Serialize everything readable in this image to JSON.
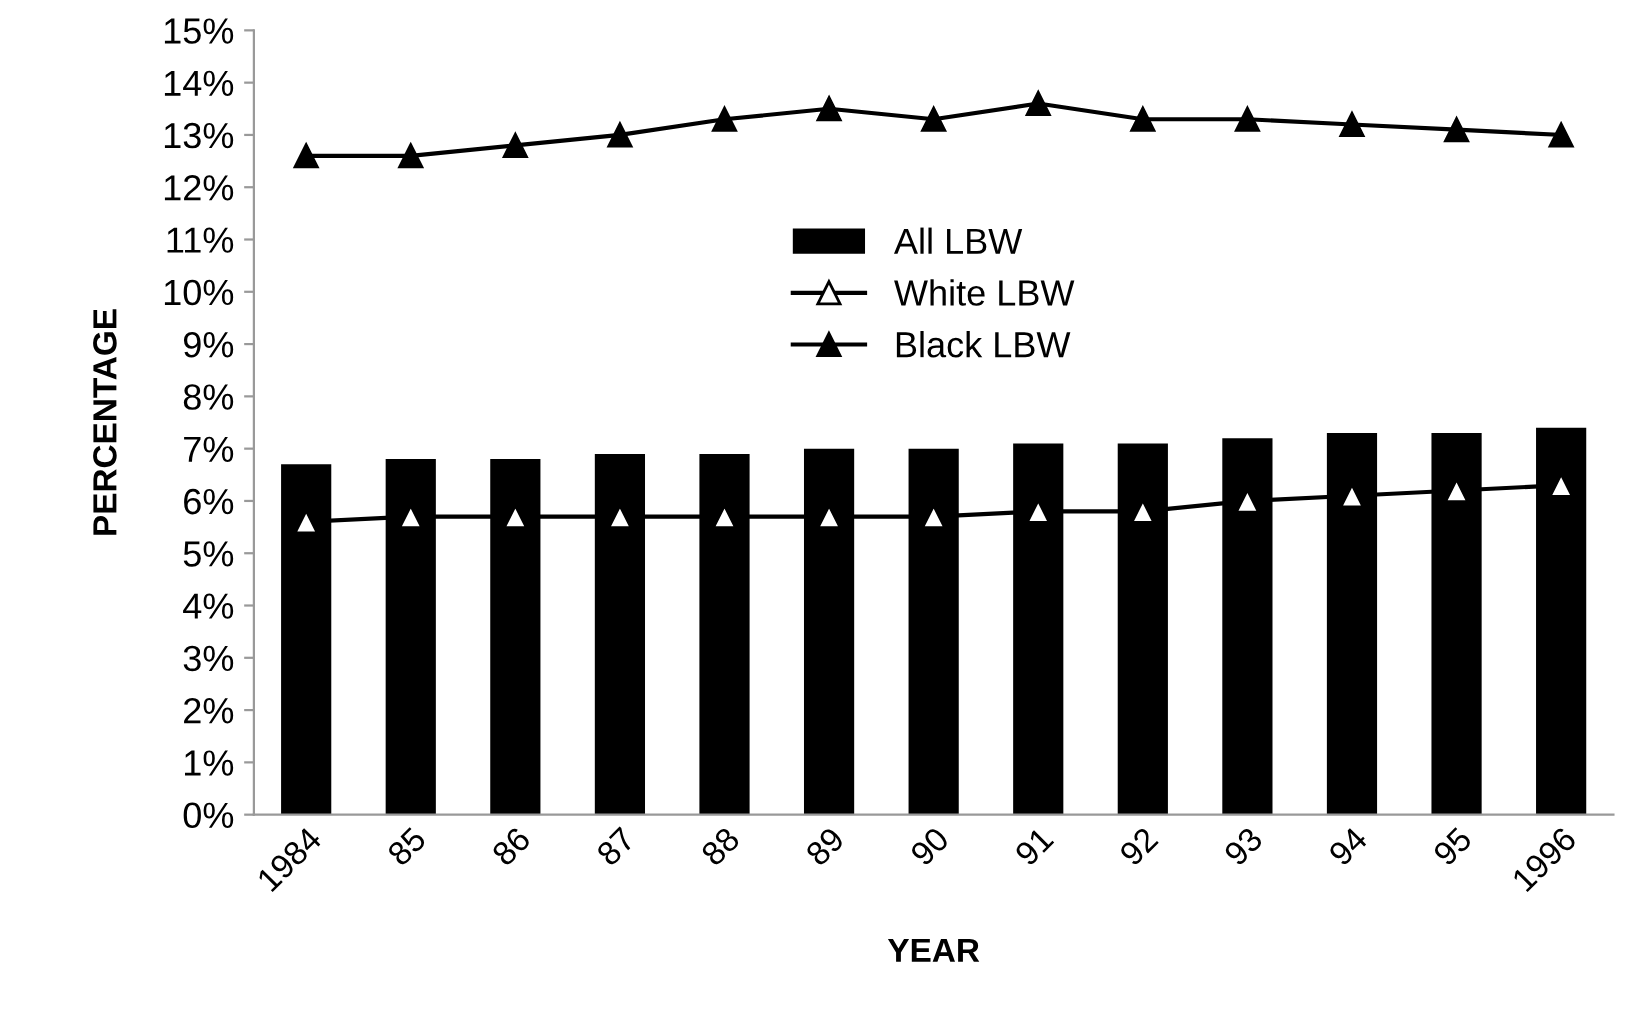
{
  "chart_data": {
    "type": "bar",
    "xlabel": "YEAR",
    "ylabel": "PERCENTAGE",
    "categories": [
      "1984",
      "85",
      "86",
      "87",
      "88",
      "89",
      "90",
      "91",
      "92",
      "93",
      "94",
      "95",
      "1996"
    ],
    "series": [
      {
        "name": "All LBW",
        "color": "#000000",
        "values": [
          6.7,
          6.8,
          6.8,
          6.9,
          6.9,
          7.0,
          7.0,
          7.1,
          7.1,
          7.2,
          7.3,
          7.3,
          7.4
        ]
      },
      {
        "name": "White LBW",
        "type": "line",
        "color": "#000000",
        "marker": "triangle",
        "values": [
          5.6,
          5.7,
          5.7,
          5.7,
          5.7,
          5.7,
          5.7,
          5.8,
          5.8,
          6.0,
          6.1,
          6.2,
          6.3
        ]
      },
      {
        "name": "Black LBW",
        "type": "line",
        "color": "#000000",
        "marker": "triangle",
        "values": [
          12.6,
          12.6,
          12.8,
          13.0,
          13.3,
          13.5,
          13.3,
          13.6,
          13.3,
          13.3,
          13.2,
          13.1,
          13.0
        ]
      }
    ],
    "ylim": [
      0,
      15
    ],
    "yticks": [
      {
        "value": 0,
        "label": "0%"
      },
      {
        "value": 1,
        "label": "1%"
      },
      {
        "value": 2,
        "label": "2%"
      },
      {
        "value": 3,
        "label": "3%"
      },
      {
        "value": 4,
        "label": "4%"
      },
      {
        "value": 5,
        "label": "5%"
      },
      {
        "value": 6,
        "label": "6%"
      },
      {
        "value": 7,
        "label": "7%"
      },
      {
        "value": 8,
        "label": "8%"
      },
      {
        "value": 9,
        "label": "9%"
      },
      {
        "value": 10,
        "label": "10%"
      },
      {
        "value": 11,
        "label": "11%"
      },
      {
        "value": 12,
        "label": "12%"
      },
      {
        "value": 13,
        "label": "13%"
      },
      {
        "value": 14,
        "label": "14%"
      },
      {
        "value": 15,
        "label": "15%"
      }
    ],
    "grid": false,
    "legend": "top"
  }
}
